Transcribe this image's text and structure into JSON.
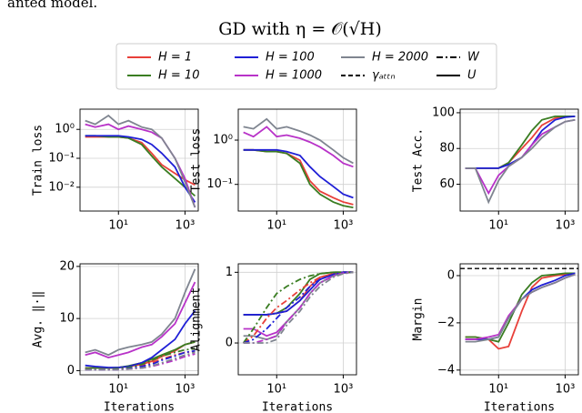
{
  "caption_fragment": "anted model.",
  "figure": {
    "title": "GD with η = 𝒪(√H)",
    "legend": [
      {
        "label": "H = 1",
        "color": "#e8403a",
        "style": "solid"
      },
      {
        "label": "H = 10",
        "color": "#3a7d22",
        "style": "solid"
      },
      {
        "label": "H = 100",
        "color": "#1f1fd6",
        "style": "solid"
      },
      {
        "label": "H = 1000",
        "color": "#b832c8",
        "style": "solid"
      },
      {
        "label": "H = 2000",
        "color": "#7f8590",
        "style": "solid"
      },
      {
        "label": "γₐₜₜₙ",
        "color": "#000000",
        "style": "dashed"
      },
      {
        "label": "W",
        "color": "#000000",
        "style": "dashdot"
      },
      {
        "label": "U",
        "color": "#000000",
        "style": "solid"
      }
    ]
  },
  "chart_data": [
    {
      "type": "line",
      "ylabel": "Train loss",
      "xscale": "log",
      "yscale": "log",
      "grid": true,
      "x": [
        1,
        2,
        5,
        10,
        20,
        50,
        100,
        200,
        500,
        1000,
        2000
      ],
      "xlim": [
        0.7,
        2500
      ],
      "xticks": [
        {
          "value": 10,
          "label": "10¹"
        },
        {
          "value": 1000,
          "label": "10³"
        }
      ],
      "ylim": [
        0.0015,
        5
      ],
      "yticks": [
        {
          "value": 0.01,
          "label": "10⁻²"
        },
        {
          "value": 0.1,
          "label": "10⁻¹"
        },
        {
          "value": 1,
          "label": "10⁰"
        }
      ],
      "series": [
        {
          "color": "#e8403a",
          "style": "solid",
          "values": [
            0.55,
            0.55,
            0.55,
            0.55,
            0.5,
            0.35,
            0.15,
            0.06,
            0.03,
            0.018,
            0.012
          ]
        },
        {
          "color": "#3a7d22",
          "style": "solid",
          "values": [
            0.6,
            0.6,
            0.55,
            0.55,
            0.5,
            0.3,
            0.12,
            0.05,
            0.02,
            0.01,
            0.005
          ]
        },
        {
          "color": "#1f1fd6",
          "style": "solid",
          "values": [
            0.6,
            0.6,
            0.6,
            0.6,
            0.55,
            0.45,
            0.3,
            0.15,
            0.05,
            0.01,
            0.003
          ]
        },
        {
          "color": "#b832c8",
          "style": "solid",
          "values": [
            1.5,
            1.2,
            1.5,
            1.0,
            1.3,
            1.0,
            0.8,
            0.5,
            0.1,
            0.02,
            0.002
          ]
        },
        {
          "color": "#7f8590",
          "style": "solid",
          "values": [
            2.0,
            1.5,
            3.0,
            1.5,
            2.0,
            1.2,
            1.0,
            0.5,
            0.1,
            0.015,
            0.002
          ]
        }
      ]
    },
    {
      "type": "line",
      "ylabel": "Test loss",
      "xscale": "log",
      "yscale": "log",
      "grid": true,
      "x": [
        1,
        2,
        5,
        10,
        20,
        50,
        100,
        200,
        500,
        1000,
        2000
      ],
      "xlim": [
        0.7,
        2500
      ],
      "xticks": [
        {
          "value": 10,
          "label": "10¹"
        },
        {
          "value": 1000,
          "label": "10³"
        }
      ],
      "ylim": [
        0.025,
        5
      ],
      "yticks": [
        {
          "value": 0.1,
          "label": "10⁻¹"
        },
        {
          "value": 1,
          "label": "10⁰"
        }
      ],
      "series": [
        {
          "color": "#e8403a",
          "style": "solid",
          "values": [
            0.6,
            0.6,
            0.55,
            0.55,
            0.5,
            0.35,
            0.12,
            0.07,
            0.05,
            0.04,
            0.035
          ]
        },
        {
          "color": "#3a7d22",
          "style": "solid",
          "values": [
            0.6,
            0.6,
            0.55,
            0.55,
            0.5,
            0.3,
            0.1,
            0.06,
            0.04,
            0.033,
            0.03
          ]
        },
        {
          "color": "#1f1fd6",
          "style": "solid",
          "values": [
            0.6,
            0.6,
            0.6,
            0.6,
            0.55,
            0.45,
            0.25,
            0.15,
            0.09,
            0.06,
            0.05
          ]
        },
        {
          "color": "#b832c8",
          "style": "solid",
          "values": [
            1.5,
            1.2,
            2.0,
            1.2,
            1.3,
            1.1,
            0.9,
            0.7,
            0.45,
            0.3,
            0.25
          ]
        },
        {
          "color": "#7f8590",
          "style": "solid",
          "values": [
            2.0,
            1.8,
            3.0,
            1.8,
            2.0,
            1.6,
            1.3,
            1.0,
            0.6,
            0.4,
            0.3
          ]
        }
      ]
    },
    {
      "type": "line",
      "ylabel": "Test Acc.",
      "xscale": "log",
      "grid": true,
      "x": [
        1,
        2,
        5,
        10,
        20,
        50,
        100,
        200,
        500,
        1000,
        2000
      ],
      "xlim": [
        0.7,
        2500
      ],
      "xticks": [
        {
          "value": 10,
          "label": "10¹"
        },
        {
          "value": 1000,
          "label": "10³"
        }
      ],
      "ylim": [
        45,
        102
      ],
      "yticks": [
        60,
        80,
        100
      ],
      "series": [
        {
          "color": "#e8403a",
          "style": "solid",
          "values": [
            69,
            69,
            69,
            69,
            72,
            80,
            86,
            93,
            97,
            98,
            98
          ]
        },
        {
          "color": "#3a7d22",
          "style": "solid",
          "values": [
            69,
            69,
            69,
            69,
            72,
            82,
            90,
            96,
            98,
            98,
            98
          ]
        },
        {
          "color": "#1f1fd6",
          "style": "solid",
          "values": [
            69,
            69,
            69,
            69,
            71,
            75,
            82,
            90,
            96,
            97.5,
            98
          ]
        },
        {
          "color": "#b832c8",
          "style": "solid",
          "values": [
            69,
            69,
            55,
            65,
            70,
            75,
            82,
            88,
            92,
            95,
            96
          ]
        },
        {
          "color": "#7f8590",
          "style": "solid",
          "values": [
            69,
            69,
            50,
            62,
            70,
            75,
            80,
            86,
            92,
            95,
            96
          ]
        }
      ]
    },
    {
      "type": "line",
      "ylabel": "Avg. ‖·‖",
      "xlabel": "Iterations",
      "xscale": "log",
      "grid": true,
      "x": [
        1,
        2,
        5,
        10,
        20,
        50,
        100,
        200,
        500,
        1000,
        2000
      ],
      "xlim": [
        0.7,
        2500
      ],
      "xticks": [
        {
          "value": 10,
          "label": "10¹"
        },
        {
          "value": 1000,
          "label": "10³"
        }
      ],
      "ylim": [
        -0.8,
        20.5
      ],
      "yticks": [
        0,
        10,
        20
      ],
      "series": [
        {
          "color": "#e8403a",
          "style": "solid",
          "values": [
            0.5,
            0.5,
            0.5,
            0.6,
            0.8,
            1.2,
            1.8,
            2.7,
            3.8,
            5,
            5.5
          ]
        },
        {
          "color": "#3a7d22",
          "style": "solid",
          "values": [
            0.5,
            0.5,
            0.5,
            0.6,
            0.9,
            1.5,
            2.2,
            3,
            4,
            5,
            5.5
          ]
        },
        {
          "color": "#1f1fd6",
          "style": "solid",
          "values": [
            1,
            0.8,
            0.6,
            0.6,
            0.8,
            1.5,
            2.5,
            4,
            6,
            9,
            11.5
          ]
        },
        {
          "color": "#b832c8",
          "style": "solid",
          "values": [
            3,
            3.5,
            2.5,
            3,
            3.5,
            4.5,
            5,
            6.5,
            9,
            13,
            17
          ]
        },
        {
          "color": "#7f8590",
          "style": "solid",
          "values": [
            3.5,
            4,
            3,
            4,
            4.5,
            5,
            5.5,
            7,
            10,
            15,
            19.5
          ]
        },
        {
          "color": "#e8403a",
          "style": "dashdot",
          "values": [
            0.3,
            0.3,
            0.3,
            0.3,
            0.5,
            0.9,
            1.5,
            2.2,
            3,
            3.5,
            3.7
          ]
        },
        {
          "color": "#3a7d22",
          "style": "dashdot",
          "values": [
            0.3,
            0.3,
            0.3,
            0.4,
            0.6,
            1.2,
            2,
            2.8,
            3.5,
            4,
            4.2
          ]
        },
        {
          "color": "#1f1fd6",
          "style": "dashdot",
          "values": [
            0.2,
            0.2,
            0.2,
            0.2,
            0.4,
            0.8,
            1.2,
            2,
            2.8,
            3.5,
            3.8
          ]
        },
        {
          "color": "#b832c8",
          "style": "dashdot",
          "values": [
            0.2,
            0.2,
            0.2,
            0.2,
            0.3,
            0.5,
            0.8,
            1.3,
            2,
            2.7,
            3.2
          ]
        },
        {
          "color": "#7f8590",
          "style": "dashdot",
          "values": [
            0.2,
            0.2,
            0.2,
            0.2,
            0.3,
            0.5,
            0.9,
            1.5,
            2.3,
            3,
            3.5
          ]
        }
      ]
    },
    {
      "type": "line",
      "ylabel": "Alignment",
      "xlabel": "Iterations",
      "xscale": "log",
      "grid": true,
      "x": [
        1,
        2,
        5,
        10,
        20,
        50,
        100,
        200,
        500,
        1000,
        2000
      ],
      "xlim": [
        0.7,
        2500
      ],
      "xticks": [
        {
          "value": 10,
          "label": "10¹"
        },
        {
          "value": 1000,
          "label": "10³"
        }
      ],
      "ylim": [
        -0.45,
        1.12
      ],
      "yticks": [
        0,
        1
      ],
      "series": [
        {
          "color": "#e8403a",
          "style": "solid",
          "values": [
            0.4,
            0.4,
            0.4,
            0.42,
            0.45,
            0.6,
            0.8,
            0.93,
            0.98,
            1,
            1
          ]
        },
        {
          "color": "#3a7d22",
          "style": "solid",
          "values": [
            0.4,
            0.4,
            0.4,
            0.42,
            0.5,
            0.7,
            0.9,
            0.98,
            1,
            1,
            1
          ]
        },
        {
          "color": "#1f1fd6",
          "style": "solid",
          "values": [
            0.4,
            0.4,
            0.4,
            0.42,
            0.45,
            0.6,
            0.75,
            0.9,
            0.97,
            1,
            1
          ]
        },
        {
          "color": "#b832c8",
          "style": "solid",
          "values": [
            0.2,
            0.2,
            0.1,
            0.15,
            0.3,
            0.5,
            0.7,
            0.85,
            0.95,
            0.99,
            1
          ]
        },
        {
          "color": "#7f8590",
          "style": "solid",
          "values": [
            0.1,
            0.1,
            0.05,
            0.1,
            0.3,
            0.5,
            0.7,
            0.85,
            0.95,
            0.99,
            1
          ]
        },
        {
          "color": "#e8403a",
          "style": "dashdot",
          "values": [
            0,
            0.1,
            0.35,
            0.5,
            0.6,
            0.75,
            0.85,
            0.93,
            0.98,
            1,
            1
          ]
        },
        {
          "color": "#3a7d22",
          "style": "dashdot",
          "values": [
            0,
            0.2,
            0.5,
            0.7,
            0.8,
            0.9,
            0.95,
            0.98,
            1,
            1,
            1
          ]
        },
        {
          "color": "#1f1fd6",
          "style": "dashdot",
          "values": [
            0,
            0.05,
            0.2,
            0.35,
            0.5,
            0.65,
            0.8,
            0.9,
            0.97,
            1,
            1
          ]
        },
        {
          "color": "#b832c8",
          "style": "dashdot",
          "values": [
            0,
            0,
            0.05,
            0.1,
            0.3,
            0.5,
            0.7,
            0.85,
            0.95,
            0.99,
            1
          ]
        },
        {
          "color": "#7f8590",
          "style": "dashdot",
          "values": [
            0,
            0,
            0,
            0.05,
            0.25,
            0.45,
            0.65,
            0.8,
            0.93,
            0.98,
            1
          ]
        }
      ]
    },
    {
      "type": "line",
      "ylabel": "Margin",
      "xlabel": "Iterations",
      "xscale": "log",
      "grid": true,
      "x": [
        1,
        2,
        5,
        10,
        20,
        50,
        100,
        200,
        500,
        1000,
        2000
      ],
      "xlim": [
        0.7,
        2500
      ],
      "xticks": [
        {
          "value": 10,
          "label": "10¹"
        },
        {
          "value": 1000,
          "label": "10³"
        }
      ],
      "ylim": [
        -4.2,
        0.5
      ],
      "yticks": [
        {
          "value": -4,
          "label": "−4"
        },
        {
          "value": -2,
          "label": "−2"
        },
        0
      ],
      "hlines": [
        {
          "value": 0.3,
          "color": "#000000",
          "style": "dashed"
        }
      ],
      "series": [
        {
          "color": "#e8403a",
          "style": "solid",
          "values": [
            -2.6,
            -2.6,
            -2.7,
            -3.1,
            -3,
            -1.5,
            -0.5,
            -0.1,
            0,
            0.05,
            0.1
          ]
        },
        {
          "color": "#3a7d22",
          "style": "solid",
          "values": [
            -2.6,
            -2.6,
            -2.7,
            -2.8,
            -2,
            -0.8,
            -0.3,
            0,
            0.05,
            0.1,
            0.1
          ]
        },
        {
          "color": "#1f1fd6",
          "style": "solid",
          "values": [
            -2.7,
            -2.7,
            -2.7,
            -2.6,
            -1.8,
            -1,
            -0.6,
            -0.4,
            -0.2,
            0,
            0.1
          ]
        },
        {
          "color": "#b832c8",
          "style": "solid",
          "values": [
            -2.7,
            -2.7,
            -2.6,
            -2.5,
            -1.7,
            -1,
            -0.7,
            -0.5,
            -0.3,
            -0.1,
            0.05
          ]
        },
        {
          "color": "#7f8590",
          "style": "solid",
          "values": [
            -2.8,
            -2.8,
            -2.7,
            -2.6,
            -1.8,
            -1,
            -0.7,
            -0.5,
            -0.3,
            -0.1,
            0.05
          ]
        }
      ]
    }
  ]
}
